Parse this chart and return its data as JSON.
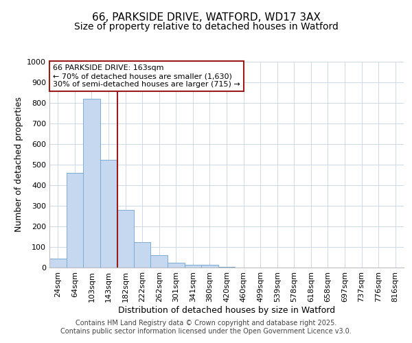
{
  "title1": "66, PARKSIDE DRIVE, WATFORD, WD17 3AX",
  "title2": "Size of property relative to detached houses in Watford",
  "xlabel": "Distribution of detached houses by size in Watford",
  "ylabel": "Number of detached properties",
  "categories": [
    "24sqm",
    "64sqm",
    "103sqm",
    "143sqm",
    "182sqm",
    "222sqm",
    "262sqm",
    "301sqm",
    "341sqm",
    "380sqm",
    "420sqm",
    "460sqm",
    "499sqm",
    "539sqm",
    "578sqm",
    "618sqm",
    "658sqm",
    "697sqm",
    "737sqm",
    "776sqm",
    "816sqm"
  ],
  "values": [
    45,
    460,
    820,
    525,
    280,
    125,
    60,
    25,
    15,
    15,
    5,
    0,
    0,
    0,
    0,
    0,
    0,
    0,
    0,
    0,
    0
  ],
  "bar_color": "#c5d8f0",
  "bar_edge_color": "#7bacd4",
  "vline_color": "#9b1a1a",
  "annotation_line1": "66 PARKSIDE DRIVE: 163sqm",
  "annotation_line2": "← 70% of detached houses are smaller (1,630)",
  "annotation_line3": "30% of semi-detached houses are larger (715) →",
  "annotation_box_color": "#ffffff",
  "annotation_border_color": "#9b1a1a",
  "ylim": [
    0,
    1000
  ],
  "yticks": [
    0,
    100,
    200,
    300,
    400,
    500,
    600,
    700,
    800,
    900,
    1000
  ],
  "grid_color": "#cdd8ea",
  "background_color": "#ffffff",
  "footer1": "Contains HM Land Registry data © Crown copyright and database right 2025.",
  "footer2": "Contains public sector information licensed under the Open Government Licence v3.0.",
  "title_fontsize": 11,
  "subtitle_fontsize": 10,
  "axis_label_fontsize": 9,
  "tick_fontsize": 8,
  "annotation_fontsize": 8,
  "footer_fontsize": 7
}
